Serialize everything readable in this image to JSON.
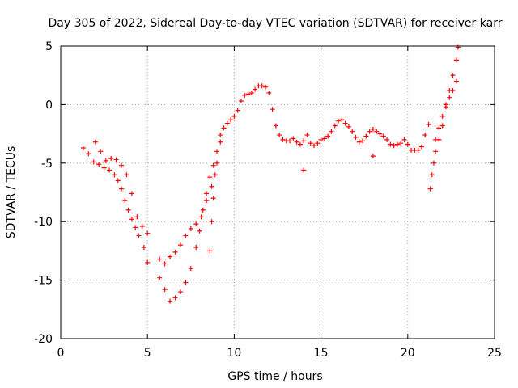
{
  "chart_data": {
    "type": "scatter",
    "title": "Day 305 of 2022, Sidereal Day-to-day VTEC variation (SDTVAR) for receiver karr",
    "xlabel": "GPS time / hours",
    "ylabel": "SDTVAR / TECUs",
    "xlim": [
      0,
      25
    ],
    "ylim": [
      -20,
      5
    ],
    "xticks": [
      0,
      5,
      10,
      15,
      20,
      25
    ],
    "xtick_labels": [
      "0",
      "5",
      "10",
      "15",
      "20",
      "25"
    ],
    "yticks": [
      -20,
      -15,
      -10,
      -5,
      0,
      5
    ],
    "ytick_labels": [
      "-20",
      "-15",
      "-10",
      "-5",
      "0",
      "5"
    ],
    "grid": true,
    "marker": "+",
    "color": "#ff0000",
    "series": [
      {
        "name": "SDTVAR",
        "x": [
          1.3,
          1.6,
          1.9,
          2.2,
          2.5,
          2.8,
          3.1,
          3.3,
          3.5,
          3.7,
          3.9,
          4.1,
          4.3,
          4.5,
          4.8,
          5.0,
          5.0,
          4.7,
          4.4,
          4.1,
          3.8,
          3.5,
          3.2,
          2.9,
          2.6,
          2.3,
          2.0,
          5.7,
          6.0,
          6.3,
          6.6,
          6.9,
          7.2,
          7.5,
          7.8,
          8.0,
          8.2,
          8.4,
          8.6,
          8.8,
          9.0,
          9.2,
          5.7,
          6.0,
          6.3,
          6.6,
          6.9,
          7.2,
          7.5,
          7.8,
          8.1,
          8.4,
          8.7,
          8.6,
          8.7,
          8.8,
          8.9,
          9.0,
          9.2,
          9.4,
          9.6,
          9.8,
          10.0,
          10.2,
          10.4,
          10.6,
          10.8,
          11.0,
          11.2,
          11.4,
          11.6,
          11.8,
          12.0,
          12.2,
          12.4,
          12.6,
          12.8,
          13.0,
          13.2,
          13.4,
          13.6,
          13.8,
          14.0,
          14.2,
          14.4,
          14.6,
          14.8,
          15.0,
          15.2,
          15.4,
          15.6,
          15.8,
          16.0,
          16.2,
          16.4,
          16.6,
          16.8,
          17.0,
          17.2,
          17.4,
          17.6,
          17.8,
          18.0,
          18.2,
          18.4,
          18.6,
          18.8,
          19.0,
          19.2,
          19.4,
          19.6,
          19.8,
          20.0,
          20.2,
          20.4,
          20.6,
          20.8,
          21.0,
          21.2,
          21.3,
          21.4,
          21.5,
          21.6,
          21.8,
          22.0,
          22.2,
          22.4,
          22.6,
          22.8,
          22.9,
          21.6,
          21.8,
          22.0,
          22.2,
          22.4,
          22.6,
          22.8,
          14.0,
          18.0
        ],
        "y": [
          -3.7,
          -4.2,
          -4.9,
          -5.1,
          -5.4,
          -5.6,
          -6.0,
          -6.5,
          -7.2,
          -8.2,
          -9.0,
          -9.8,
          -10.5,
          -11.2,
          -12.2,
          -13.5,
          -11.0,
          -10.4,
          -9.6,
          -7.6,
          -6.0,
          -5.2,
          -4.7,
          -4.6,
          -4.8,
          -4.0,
          -3.2,
          -14.8,
          -15.8,
          -16.8,
          -16.5,
          -16.0,
          -15.2,
          -14.0,
          -12.2,
          -10.8,
          -9.0,
          -7.6,
          -6.2,
          -5.2,
          -4.0,
          -3.2,
          -13.2,
          -13.6,
          -13.0,
          -12.6,
          -12.0,
          -11.2,
          -10.6,
          -10.2,
          -9.6,
          -8.2,
          -7.0,
          -12.5,
          -10.0,
          -8.0,
          -6.0,
          -5.0,
          -2.6,
          -2.0,
          -1.6,
          -1.3,
          -1.0,
          -0.5,
          0.3,
          0.8,
          0.9,
          1.0,
          1.3,
          1.6,
          1.6,
          1.5,
          1.0,
          -0.4,
          -1.8,
          -2.6,
          -3.0,
          -3.1,
          -3.1,
          -2.9,
          -3.2,
          -3.4,
          -3.1,
          -2.6,
          -3.3,
          -3.5,
          -3.3,
          -3.0,
          -2.9,
          -2.7,
          -2.3,
          -1.8,
          -1.4,
          -1.3,
          -1.6,
          -1.9,
          -2.3,
          -2.8,
          -3.2,
          -3.1,
          -2.7,
          -2.3,
          -2.1,
          -2.3,
          -2.5,
          -2.7,
          -3.0,
          -3.4,
          -3.5,
          -3.4,
          -3.3,
          -3.0,
          -3.4,
          -3.9,
          -3.9,
          -3.9,
          -3.6,
          -2.6,
          -1.7,
          -7.2,
          -6.0,
          -5.0,
          -4.0,
          -3.0,
          -1.8,
          -0.2,
          1.2,
          2.5,
          3.8,
          4.9,
          -3.0,
          -2.0,
          -1.0,
          0.0,
          0.6,
          1.2,
          2.0,
          -5.6,
          -4.4
        ]
      }
    ]
  }
}
